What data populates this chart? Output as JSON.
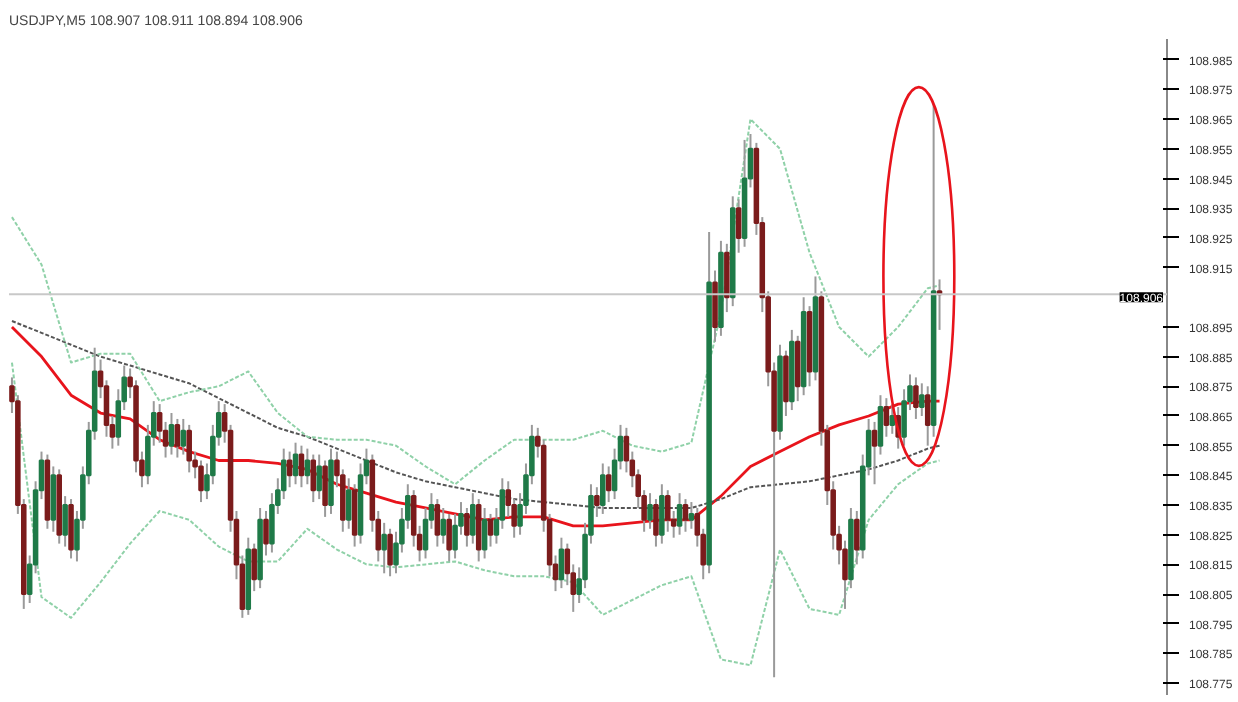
{
  "chart_data": {
    "type": "candlestick",
    "title": "USDJPY,M5  108.907 108.911 108.894 108.906",
    "categories": [
      null,
      null,
      null,
      null,
      null,
      null,
      null,
      null,
      null,
      null,
      null,
      null,
      null,
      null,
      null,
      null,
      null,
      null,
      null,
      null,
      null,
      null,
      null,
      null,
      null,
      null,
      null,
      null,
      null,
      null,
      null,
      null,
      null,
      null,
      null,
      null,
      null,
      null,
      null,
      null,
      null,
      null,
      null,
      null,
      null,
      null,
      null,
      null,
      null,
      null,
      null,
      null,
      null,
      null,
      null,
      null,
      null,
      null,
      null,
      null,
      null,
      null,
      null,
      null,
      null,
      null,
      null,
      null,
      null,
      null,
      null,
      null,
      null,
      null,
      null,
      null,
      null,
      null,
      null,
      null,
      null,
      null,
      null,
      null,
      null,
      null,
      null,
      null,
      null,
      null,
      null,
      null,
      null,
      null,
      null,
      null,
      null,
      null,
      null,
      null,
      null,
      null,
      null,
      null,
      null,
      null,
      null,
      null,
      null,
      null,
      null,
      null,
      null,
      null,
      null,
      null,
      null,
      null,
      null,
      null,
      null,
      null,
      null,
      null,
      null,
      null,
      null,
      null,
      null,
      null,
      null,
      null,
      null,
      null,
      null,
      null,
      null,
      null,
      null,
      null,
      null,
      null,
      null,
      null,
      null,
      null,
      null,
      null,
      null,
      null,
      null,
      null,
      null,
      null,
      null,
      null,
      null,
      null,
      null,
      null,
      null,
      null,
      null,
      null,
      null,
      null,
      null,
      null,
      null,
      null,
      null,
      null,
      null,
      null,
      null,
      null,
      null,
      null,
      null,
      null,
      null,
      null,
      null,
      null,
      null,
      null,
      null,
      null,
      null,
      null,
      null,
      null,
      null,
      null,
      null,
      null
    ],
    "ohlc": [
      [
        108.875,
        108.878,
        108.866,
        108.87
      ],
      [
        108.87,
        108.872,
        108.832,
        108.835
      ],
      [
        108.835,
        108.837,
        108.8,
        108.805
      ],
      [
        108.805,
        108.818,
        108.802,
        108.815
      ],
      [
        108.815,
        108.843,
        108.812,
        108.84
      ],
      [
        108.84,
        108.853,
        108.837,
        108.85
      ],
      [
        108.85,
        108.852,
        108.827,
        108.83
      ],
      [
        108.83,
        108.848,
        108.826,
        108.845
      ],
      [
        108.845,
        108.847,
        108.822,
        108.825
      ],
      [
        108.825,
        108.838,
        108.821,
        108.835
      ],
      [
        108.835,
        108.837,
        108.817,
        108.82
      ],
      [
        108.82,
        108.833,
        108.816,
        108.83
      ],
      [
        108.83,
        108.848,
        108.827,
        108.845
      ],
      [
        108.845,
        108.863,
        108.842,
        108.86
      ],
      [
        108.86,
        108.888,
        108.857,
        108.88
      ],
      [
        108.88,
        108.884,
        108.871,
        108.875
      ],
      [
        108.875,
        108.877,
        108.858,
        108.862
      ],
      [
        108.862,
        108.865,
        108.854,
        108.858
      ],
      [
        108.858,
        108.874,
        108.855,
        108.87
      ],
      [
        108.87,
        108.882,
        108.867,
        108.878
      ],
      [
        108.878,
        108.881,
        108.871,
        108.875
      ],
      [
        108.875,
        108.877,
        108.846,
        108.85
      ],
      [
        108.85,
        108.853,
        108.841,
        108.845
      ],
      [
        108.845,
        108.862,
        108.842,
        108.858
      ],
      [
        108.858,
        108.87,
        108.855,
        108.866
      ],
      [
        108.866,
        108.869,
        108.856,
        108.86
      ],
      [
        108.86,
        108.863,
        108.851,
        108.855
      ],
      [
        108.855,
        108.866,
        108.852,
        108.862
      ],
      [
        108.862,
        108.864,
        108.851,
        108.855
      ],
      [
        108.855,
        108.864,
        108.852,
        108.86
      ],
      [
        108.86,
        108.862,
        108.846,
        108.85
      ],
      [
        108.85,
        108.853,
        108.844,
        108.848
      ],
      [
        108.848,
        108.85,
        108.836,
        108.84
      ],
      [
        108.84,
        108.849,
        108.837,
        108.845
      ],
      [
        108.845,
        108.862,
        108.842,
        108.858
      ],
      [
        108.858,
        108.87,
        108.855,
        108.866
      ],
      [
        108.866,
        108.869,
        108.856,
        108.86
      ],
      [
        108.86,
        108.862,
        108.826,
        108.83
      ],
      [
        108.83,
        108.833,
        108.81,
        108.815
      ],
      [
        108.815,
        108.818,
        108.797,
        108.8
      ],
      [
        108.8,
        108.824,
        108.798,
        108.82
      ],
      [
        108.82,
        108.822,
        108.806,
        108.81
      ],
      [
        108.81,
        108.834,
        108.807,
        108.83
      ],
      [
        108.83,
        108.833,
        108.818,
        108.822
      ],
      [
        108.822,
        108.839,
        108.819,
        108.835
      ],
      [
        108.835,
        108.844,
        108.832,
        108.84
      ],
      [
        108.84,
        108.854,
        108.837,
        108.85
      ],
      [
        108.85,
        108.853,
        108.841,
        108.845
      ],
      [
        108.845,
        108.856,
        108.842,
        108.852
      ],
      [
        108.852,
        108.855,
        108.841,
        108.845
      ],
      [
        108.845,
        108.854,
        108.842,
        108.85
      ],
      [
        108.85,
        108.852,
        108.836,
        108.84
      ],
      [
        108.84,
        108.852,
        108.837,
        108.848
      ],
      [
        108.848,
        108.85,
        108.831,
        108.835
      ],
      [
        108.835,
        108.854,
        108.832,
        108.85
      ],
      [
        108.85,
        108.853,
        108.841,
        108.845
      ],
      [
        108.845,
        108.847,
        108.826,
        108.83
      ],
      [
        108.83,
        108.844,
        108.827,
        108.84
      ],
      [
        108.84,
        108.842,
        108.821,
        108.825
      ],
      [
        108.825,
        108.849,
        108.822,
        108.845
      ],
      [
        108.845,
        108.854,
        108.842,
        108.85
      ],
      [
        108.85,
        108.852,
        108.826,
        108.83
      ],
      [
        108.83,
        108.833,
        108.816,
        108.82
      ],
      [
        108.82,
        108.829,
        108.812,
        108.825
      ],
      [
        108.825,
        108.827,
        108.811,
        108.815
      ],
      [
        108.815,
        108.826,
        108.812,
        108.822
      ],
      [
        108.822,
        108.834,
        108.819,
        108.83
      ],
      [
        108.83,
        108.842,
        108.827,
        108.838
      ],
      [
        108.838,
        108.84,
        108.821,
        108.825
      ],
      [
        108.825,
        108.828,
        108.816,
        108.82
      ],
      [
        108.82,
        108.834,
        108.817,
        108.83
      ],
      [
        108.83,
        108.839,
        108.827,
        108.835
      ],
      [
        108.835,
        108.837,
        108.821,
        108.825
      ],
      [
        108.825,
        108.834,
        108.822,
        108.83
      ],
      [
        108.83,
        108.832,
        108.816,
        108.82
      ],
      [
        108.82,
        108.832,
        108.817,
        108.828
      ],
      [
        108.828,
        108.836,
        108.825,
        108.832
      ],
      [
        108.832,
        108.834,
        108.821,
        108.825
      ],
      [
        108.825,
        108.839,
        108.822,
        108.835
      ],
      [
        108.835,
        108.837,
        108.816,
        108.82
      ],
      [
        108.82,
        108.834,
        108.817,
        108.83
      ],
      [
        108.83,
        108.832,
        108.821,
        108.825
      ],
      [
        108.825,
        108.834,
        108.822,
        108.83
      ],
      [
        108.83,
        108.844,
        108.827,
        108.84
      ],
      [
        108.84,
        108.843,
        108.831,
        108.835
      ],
      [
        108.835,
        108.837,
        108.824,
        108.828
      ],
      [
        108.828,
        108.839,
        108.825,
        108.835
      ],
      [
        108.835,
        108.849,
        108.832,
        108.845
      ],
      [
        108.845,
        108.862,
        108.842,
        108.858
      ],
      [
        108.858,
        108.861,
        108.851,
        108.855
      ],
      [
        108.855,
        108.857,
        108.826,
        108.83
      ],
      [
        108.83,
        108.832,
        108.811,
        108.815
      ],
      [
        108.815,
        108.818,
        108.806,
        108.81
      ],
      [
        108.81,
        108.824,
        108.807,
        108.82
      ],
      [
        108.82,
        108.822,
        108.808,
        108.812
      ],
      [
        108.812,
        108.815,
        108.799,
        108.805
      ],
      [
        108.805,
        108.814,
        108.802,
        108.81
      ],
      [
        108.81,
        108.829,
        108.807,
        108.825
      ],
      [
        108.825,
        108.842,
        108.822,
        108.838
      ],
      [
        108.838,
        108.841,
        108.831,
        108.835
      ],
      [
        108.835,
        108.849,
        108.832,
        108.845
      ],
      [
        108.845,
        108.848,
        108.836,
        108.84
      ],
      [
        108.84,
        108.854,
        108.837,
        108.85
      ],
      [
        108.85,
        108.862,
        108.847,
        108.858
      ],
      [
        108.858,
        108.861,
        108.846,
        108.85
      ],
      [
        108.85,
        108.853,
        108.841,
        108.845
      ],
      [
        108.845,
        108.847,
        108.834,
        108.838
      ],
      [
        108.838,
        108.84,
        108.826,
        108.83
      ],
      [
        108.83,
        108.839,
        108.827,
        108.835
      ],
      [
        108.835,
        108.837,
        108.821,
        108.825
      ],
      [
        108.825,
        108.842,
        108.822,
        108.838
      ],
      [
        108.838,
        108.84,
        108.826,
        108.83
      ],
      [
        108.83,
        108.833,
        108.824,
        108.828
      ],
      [
        108.828,
        108.839,
        108.825,
        108.835
      ],
      [
        108.835,
        108.837,
        108.826,
        108.83
      ],
      [
        108.83,
        108.836,
        108.827,
        108.832
      ],
      [
        108.832,
        108.834,
        108.821,
        108.825
      ],
      [
        108.825,
        108.827,
        108.81,
        108.815
      ],
      [
        108.815,
        108.927,
        108.812,
        108.91
      ],
      [
        108.91,
        108.914,
        108.89,
        108.895
      ],
      [
        108.895,
        108.924,
        108.892,
        108.92
      ],
      [
        108.92,
        108.923,
        108.9,
        108.905
      ],
      [
        108.905,
        108.939,
        108.902,
        108.935
      ],
      [
        108.935,
        108.938,
        108.92,
        108.925
      ],
      [
        108.925,
        108.958,
        108.922,
        108.945
      ],
      [
        108.945,
        108.96,
        108.942,
        108.955
      ],
      [
        108.955,
        108.957,
        108.926,
        108.93
      ],
      [
        108.93,
        108.932,
        108.9,
        108.905
      ],
      [
        108.905,
        108.907,
        108.875,
        108.88
      ],
      [
        108.88,
        108.883,
        108.777,
        108.86
      ],
      [
        108.86,
        108.889,
        108.857,
        108.885
      ],
      [
        108.885,
        108.887,
        108.865,
        108.87
      ],
      [
        108.87,
        108.894,
        108.867,
        108.89
      ],
      [
        108.89,
        108.892,
        108.87,
        108.875
      ],
      [
        108.875,
        108.905,
        108.872,
        108.9
      ],
      [
        108.9,
        108.902,
        108.875,
        108.88
      ],
      [
        108.88,
        108.912,
        108.877,
        108.905
      ],
      [
        108.905,
        108.907,
        108.855,
        108.86
      ],
      [
        108.86,
        108.862,
        108.835,
        108.84
      ],
      [
        108.84,
        108.843,
        108.82,
        108.825
      ],
      [
        108.825,
        108.828,
        108.815,
        108.82
      ],
      [
        108.82,
        108.823,
        108.8,
        108.81
      ],
      [
        108.81,
        108.834,
        108.807,
        108.83
      ],
      [
        108.83,
        108.833,
        108.815,
        108.82
      ],
      [
        108.82,
        108.852,
        108.817,
        108.848
      ],
      [
        108.848,
        108.864,
        108.845,
        108.86
      ],
      [
        108.86,
        108.863,
        108.842,
        108.855
      ],
      [
        108.855,
        108.872,
        108.852,
        108.868
      ],
      [
        108.868,
        108.871,
        108.858,
        108.862
      ],
      [
        108.862,
        108.869,
        108.859,
        108.865
      ],
      [
        108.865,
        108.868,
        108.854,
        108.858
      ],
      [
        108.858,
        108.874,
        108.855,
        108.87
      ],
      [
        108.87,
        108.879,
        108.867,
        108.875
      ],
      [
        108.875,
        108.878,
        108.864,
        108.868
      ],
      [
        108.868,
        108.876,
        108.865,
        108.872
      ],
      [
        108.872,
        108.875,
        108.855,
        108.862
      ],
      [
        108.862,
        108.97,
        108.858,
        108.907
      ],
      [
        108.907,
        108.911,
        108.894,
        108.906
      ],
      null,
      null,
      null,
      null,
      null,
      null,
      null,
      null,
      null,
      null,
      null,
      null,
      null,
      null,
      null,
      null,
      null,
      null,
      null,
      null,
      null,
      null,
      null,
      null,
      null,
      null,
      null,
      null,
      null,
      null,
      null,
      null,
      null,
      null,
      null,
      null,
      null,
      null
    ],
    "series": [
      {
        "type": "line",
        "color": "#e8141c",
        "line_style": "solid",
        "values": [
          108.895,
          null,
          null,
          null,
          null,
          108.885,
          null,
          null,
          null,
          null,
          108.872,
          null,
          null,
          null,
          null,
          108.866,
          null,
          null,
          null,
          null,
          108.864,
          null,
          null,
          null,
          null,
          108.857,
          null,
          null,
          null,
          null,
          108.853,
          null,
          null,
          null,
          null,
          108.85,
          null,
          null,
          null,
          null,
          108.85,
          null,
          null,
          null,
          null,
          108.849,
          null,
          null,
          null,
          null,
          108.847,
          null,
          null,
          null,
          null,
          108.842,
          null,
          null,
          null,
          null,
          108.839,
          null,
          null,
          null,
          null,
          108.836,
          null,
          null,
          null,
          null,
          108.834,
          null,
          null,
          null,
          null,
          108.832,
          null,
          null,
          null,
          null,
          108.83,
          null,
          null,
          null,
          null,
          108.831,
          null,
          null,
          null,
          null,
          108.831,
          null,
          null,
          null,
          null,
          108.828,
          null,
          null,
          null,
          null,
          108.828,
          null,
          null,
          null,
          null,
          108.829,
          null,
          null,
          null,
          null,
          108.83,
          null,
          null,
          null,
          null,
          108.83,
          null,
          null,
          null,
          null,
          108.838,
          null,
          null,
          null,
          null,
          108.848,
          null,
          null,
          null,
          null,
          108.853,
          null,
          null,
          null,
          null,
          108.858,
          null,
          null,
          null,
          null,
          108.862,
          null,
          null,
          null,
          null,
          108.865,
          null,
          null,
          null,
          null,
          108.869,
          null,
          null,
          null,
          null,
          108.87,
          null,
          108.87,
          null,
          null,
          null,
          null,
          null,
          null,
          null,
          null,
          null,
          null,
          null,
          null,
          null,
          null,
          null,
          null,
          null,
          null,
          null,
          null,
          null,
          null,
          null,
          null,
          null,
          null,
          null,
          null,
          null,
          null,
          null,
          null,
          null,
          null,
          null,
          null,
          null,
          null
        ]
      },
      {
        "type": "line",
        "color": "#555555",
        "line_style": "dotted",
        "values": [
          108.897,
          null,
          null,
          null,
          null,
          108.893,
          null,
          null,
          null,
          null,
          108.889,
          null,
          null,
          null,
          null,
          108.885,
          null,
          null,
          null,
          null,
          108.882,
          null,
          null,
          null,
          null,
          108.879,
          null,
          null,
          null,
          null,
          108.876,
          null,
          null,
          null,
          null,
          108.871,
          null,
          null,
          null,
          null,
          108.866,
          null,
          null,
          null,
          null,
          108.861,
          null,
          null,
          null,
          null,
          108.858,
          null,
          null,
          null,
          null,
          108.854,
          null,
          null,
          null,
          null,
          108.85,
          null,
          null,
          null,
          null,
          108.846,
          null,
          null,
          null,
          null,
          108.843,
          null,
          null,
          null,
          null,
          108.841,
          null,
          null,
          null,
          null,
          108.839,
          null,
          null,
          null,
          null,
          108.837,
          null,
          null,
          null,
          null,
          108.836,
          null,
          null,
          null,
          null,
          108.835,
          null,
          null,
          null,
          null,
          108.834,
          null,
          null,
          null,
          null,
          108.834,
          null,
          null,
          null,
          null,
          108.834,
          null,
          null,
          null,
          null,
          108.834,
          null,
          null,
          null,
          null,
          108.837,
          null,
          null,
          null,
          null,
          108.841,
          null,
          null,
          null,
          null,
          108.842,
          null,
          null,
          null,
          null,
          108.843,
          null,
          null,
          null,
          null,
          108.845,
          null,
          null,
          null,
          null,
          108.847,
          null,
          null,
          null,
          null,
          108.85,
          null,
          null,
          null,
          null,
          108.854,
          null,
          108.855,
          null,
          null,
          null,
          null,
          null,
          null,
          null,
          null,
          null,
          null,
          null,
          null,
          null,
          null,
          null,
          null,
          null,
          null,
          null,
          null,
          null,
          null,
          null,
          null,
          null,
          null,
          null,
          null,
          null,
          null,
          null,
          null,
          null,
          null,
          null,
          null,
          null,
          null
        ]
      },
      {
        "type": "line",
        "color": "#8fd1a8",
        "line_style": "dotted",
        "values": [
          108.932,
          null,
          null,
          null,
          null,
          108.916,
          null,
          null,
          null,
          null,
          108.883,
          null,
          null,
          null,
          null,
          108.886,
          null,
          null,
          null,
          null,
          108.886,
          null,
          null,
          null,
          null,
          108.87,
          null,
          null,
          null,
          null,
          108.873,
          null,
          null,
          null,
          null,
          108.875,
          null,
          null,
          null,
          null,
          108.88,
          null,
          null,
          null,
          null,
          108.866,
          null,
          null,
          null,
          null,
          108.858,
          null,
          null,
          null,
          null,
          108.857,
          null,
          null,
          null,
          null,
          108.857,
          null,
          null,
          null,
          null,
          108.855,
          null,
          null,
          null,
          null,
          108.848,
          null,
          null,
          null,
          null,
          108.842,
          null,
          null,
          null,
          null,
          108.85,
          null,
          null,
          null,
          null,
          108.857,
          null,
          null,
          null,
          null,
          108.857,
          null,
          null,
          null,
          null,
          108.857,
          null,
          null,
          null,
          null,
          108.86,
          null,
          null,
          null,
          null,
          108.855,
          null,
          null,
          null,
          null,
          108.853,
          null,
          null,
          null,
          null,
          108.856,
          null,
          null,
          null,
          null,
          108.9,
          null,
          null,
          null,
          null,
          108.965,
          null,
          null,
          null,
          null,
          108.955,
          null,
          null,
          null,
          null,
          108.92,
          null,
          null,
          null,
          null,
          108.895,
          null,
          null,
          null,
          null,
          108.885,
          null,
          null,
          null,
          null,
          108.895,
          null,
          null,
          null,
          null,
          108.908,
          null,
          108.909,
          null,
          null,
          null,
          null,
          null,
          null,
          null,
          null,
          null,
          null,
          null,
          null,
          null,
          null,
          null,
          null,
          null,
          null,
          null,
          null,
          null,
          null,
          null,
          null,
          null,
          null,
          null,
          null,
          null,
          null,
          null,
          null,
          null,
          null,
          null,
          null,
          null,
          null
        ]
      },
      {
        "type": "line",
        "color": "#8fd1a8",
        "line_style": "dotted",
        "values": [
          108.883,
          null,
          null,
          null,
          null,
          108.804,
          null,
          null,
          null,
          null,
          108.797,
          null,
          null,
          null,
          null,
          108.809,
          null,
          null,
          null,
          null,
          108.822,
          null,
          null,
          null,
          null,
          108.833,
          null,
          null,
          null,
          null,
          108.83,
          null,
          null,
          null,
          null,
          108.821,
          null,
          null,
          null,
          null,
          108.816,
          null,
          null,
          null,
          null,
          108.816,
          null,
          null,
          null,
          null,
          108.827,
          null,
          null,
          null,
          null,
          108.82,
          null,
          null,
          null,
          null,
          108.815,
          null,
          null,
          null,
          null,
          108.814,
          null,
          null,
          null,
          null,
          108.815,
          null,
          null,
          null,
          null,
          108.816,
          null,
          null,
          null,
          null,
          108.813,
          null,
          null,
          null,
          null,
          108.811,
          null,
          null,
          null,
          null,
          108.811,
          null,
          null,
          null,
          null,
          108.809,
          null,
          null,
          null,
          null,
          108.798,
          null,
          null,
          null,
          null,
          108.803,
          null,
          null,
          null,
          null,
          108.808,
          null,
          null,
          null,
          null,
          108.811,
          null,
          null,
          null,
          null,
          108.783,
          null,
          null,
          null,
          null,
          108.781,
          null,
          null,
          null,
          null,
          108.82,
          null,
          null,
          null,
          null,
          108.8,
          null,
          null,
          null,
          null,
          108.798,
          null,
          null,
          null,
          null,
          108.83,
          null,
          null,
          null,
          null,
          108.842,
          null,
          null,
          null,
          null,
          108.849,
          null,
          108.85,
          null,
          null,
          null,
          null,
          null,
          null,
          null,
          null,
          null,
          null,
          null,
          null,
          null,
          null,
          null,
          null,
          null,
          null,
          null,
          null,
          null,
          null,
          null,
          null,
          null,
          null,
          null,
          null,
          null,
          null,
          null,
          null,
          null,
          null,
          null,
          null,
          null,
          null
        ]
      }
    ],
    "ylim": [
      108.771,
      108.992
    ],
    "yticks": [
      108.985,
      108.975,
      108.965,
      108.955,
      108.945,
      108.935,
      108.925,
      108.915,
      108.895,
      108.885,
      108.875,
      108.865,
      108.855,
      108.845,
      108.835,
      108.825,
      108.815,
      108.805,
      108.795,
      108.785,
      108.775
    ],
    "ref_lines": [
      {
        "axis": "y",
        "value": 108.906,
        "label": "108.906",
        "color": "#c8c8c8"
      }
    ],
    "tick_labels": "y"
  }
}
